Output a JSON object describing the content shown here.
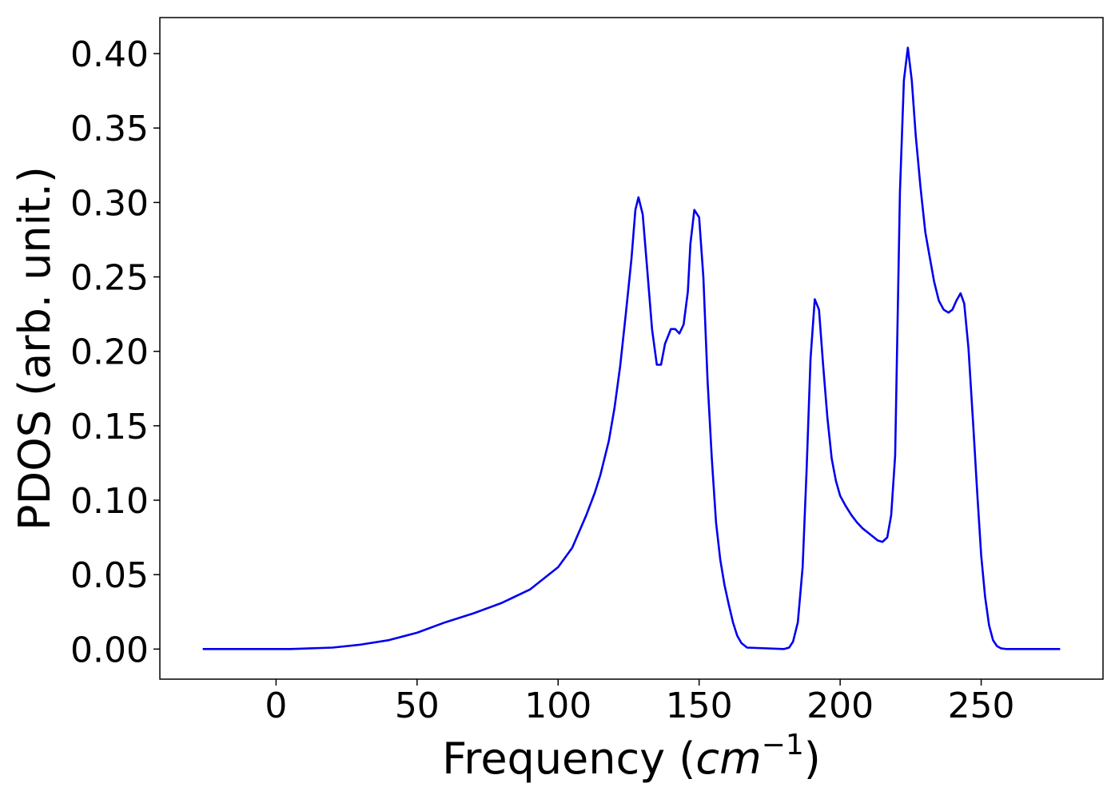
{
  "chart_data": {
    "type": "line",
    "xlabel": {
      "prefix": "Frequency (",
      "unit": "cm",
      "exponent": "−1",
      "suffix": ")"
    },
    "ylabel": "PDOS (arb. unit.)",
    "xlim": [
      -41.2,
      293.2
    ],
    "ylim": [
      -0.0202,
      0.4242
    ],
    "xticks": [
      0,
      50,
      100,
      150,
      200,
      250
    ],
    "yticks": [
      {
        "value": 0,
        "label": "0.00"
      },
      {
        "value": 0.05,
        "label": "0.05"
      },
      {
        "value": 0.1,
        "label": "0.10"
      },
      {
        "value": 0.15,
        "label": "0.15"
      },
      {
        "value": 0.2,
        "label": "0.20"
      },
      {
        "value": 0.25,
        "label": "0.25"
      },
      {
        "value": 0.3,
        "label": "0.30"
      },
      {
        "value": 0.35,
        "label": "0.35"
      },
      {
        "value": 0.4,
        "label": "0.40"
      }
    ],
    "x": [
      -26,
      5,
      20,
      30,
      40,
      50,
      60,
      70,
      80,
      90,
      100,
      105,
      110,
      113,
      115,
      118,
      120,
      122,
      124,
      126,
      127.4,
      128.5,
      130,
      131.6,
      133.3,
      135,
      136.5,
      137.9,
      140,
      141.5,
      143,
      144.5,
      146,
      146.9,
      148.3,
      150,
      151.5,
      153,
      154.5,
      156,
      157.5,
      159,
      160.5,
      162,
      163.5,
      165,
      167,
      180,
      181.9,
      183.3,
      185,
      186.7,
      188.1,
      189.5,
      191,
      192.5,
      194,
      195.5,
      197,
      198.5,
      200,
      202,
      204,
      206,
      208,
      210,
      212,
      213.3,
      215,
      216.7,
      218.1,
      219.5,
      221.2,
      222.6,
      224,
      225.4,
      226.8,
      228.5,
      230.2,
      231.6,
      233.3,
      235,
      236.7,
      238.4,
      239.8,
      241.2,
      242.7,
      244,
      245.5,
      247.2,
      248.6,
      250,
      251.4,
      252.8,
      254.2,
      255.6,
      257,
      259,
      278
    ],
    "series": [
      {
        "name": "PDOS",
        "color": "#0000ee",
        "values": [
          0,
          0,
          0.001,
          0.003,
          0.006,
          0.011,
          0.018,
          0.024,
          0.031,
          0.04,
          0.055,
          0.068,
          0.09,
          0.105,
          0.117,
          0.14,
          0.162,
          0.19,
          0.225,
          0.262,
          0.295,
          0.3035,
          0.292,
          0.255,
          0.215,
          0.191,
          0.191,
          0.205,
          0.215,
          0.215,
          0.212,
          0.218,
          0.24,
          0.272,
          0.295,
          0.29,
          0.25,
          0.18,
          0.128,
          0.085,
          0.06,
          0.043,
          0.03,
          0.018,
          0.009,
          0.004,
          0.001,
          0,
          0.001,
          0.005,
          0.018,
          0.055,
          0.12,
          0.195,
          0.235,
          0.228,
          0.19,
          0.155,
          0.128,
          0.113,
          0.103,
          0.096,
          0.09,
          0.085,
          0.081,
          0.078,
          0.075,
          0.073,
          0.072,
          0.075,
          0.09,
          0.13,
          0.307,
          0.382,
          0.404,
          0.382,
          0.345,
          0.31,
          0.28,
          0.265,
          0.247,
          0.234,
          0.228,
          0.226,
          0.228,
          0.234,
          0.239,
          0.232,
          0.202,
          0.15,
          0.105,
          0.063,
          0.035,
          0.016,
          0.006,
          0.002,
          0.0005,
          0,
          0
        ]
      }
    ]
  }
}
